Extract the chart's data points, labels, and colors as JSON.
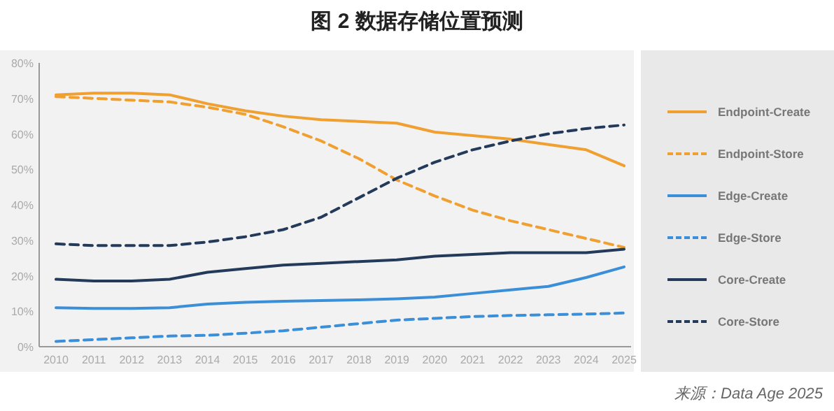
{
  "chart_data": {
    "type": "line",
    "title": "图 2 数据存储位置预测",
    "categories": [
      "2010",
      "2011",
      "2012",
      "2013",
      "2014",
      "2015",
      "2016",
      "2017",
      "2018",
      "2019",
      "2020",
      "2021",
      "2022",
      "2023",
      "2024",
      "2025"
    ],
    "ylim": [
      0,
      80
    ],
    "yticks": [
      {
        "value": 0,
        "label": "0%"
      },
      {
        "value": 10,
        "label": "10%"
      },
      {
        "value": 20,
        "label": "20%"
      },
      {
        "value": 30,
        "label": "30%"
      },
      {
        "value": 40,
        "label": "40%"
      },
      {
        "value": 50,
        "label": "50%"
      },
      {
        "value": 60,
        "label": "60%"
      },
      {
        "value": 70,
        "label": "70%"
      },
      {
        "value": 80,
        "label": "80%"
      }
    ],
    "legend": "right",
    "marker": "none",
    "grid": false,
    "series": [
      {
        "name": "Endpoint-Create",
        "color": "#f0a030",
        "line_style": "solid",
        "values": [
          71,
          71.5,
          71.5,
          71,
          68.5,
          66.5,
          65,
          64,
          63.5,
          63,
          60.5,
          59.5,
          58.5,
          57,
          55.5,
          51
        ]
      },
      {
        "name": "Endpoint-Store",
        "color": "#f0a030",
        "line_style": "dashed",
        "values": [
          70.5,
          70,
          69.5,
          69,
          67.5,
          65.5,
          62,
          58,
          53,
          47,
          42.5,
          38.5,
          35.5,
          33,
          30.5,
          28
        ]
      },
      {
        "name": "Edge-Create",
        "color": "#3a8fd8",
        "line_style": "solid",
        "values": [
          11,
          10.8,
          10.8,
          11,
          12,
          12.5,
          12.8,
          13,
          13.2,
          13.5,
          14,
          15,
          16,
          17,
          19.5,
          22.5
        ]
      },
      {
        "name": "Edge-Store",
        "color": "#3a8fd8",
        "line_style": "dashed",
        "values": [
          1.5,
          2,
          2.5,
          3,
          3.2,
          3.8,
          4.5,
          5.5,
          6.5,
          7.5,
          8,
          8.5,
          8.8,
          9,
          9.2,
          9.5
        ]
      },
      {
        "name": "Core-Create",
        "color": "#243a5a",
        "line_style": "solid",
        "values": [
          19,
          18.5,
          18.5,
          19,
          21,
          22,
          23,
          23.5,
          24,
          24.5,
          25.5,
          26,
          26.5,
          26.5,
          26.5,
          27.5
        ]
      },
      {
        "name": "Core-Store",
        "color": "#243a5a",
        "line_style": "dashed",
        "values": [
          29,
          28.5,
          28.5,
          28.5,
          29.5,
          31,
          33,
          36.5,
          42,
          47.5,
          52,
          55.5,
          58,
          60,
          61.5,
          62.5
        ]
      }
    ],
    "annotations": [
      "来源：Data Age 2025"
    ]
  }
}
